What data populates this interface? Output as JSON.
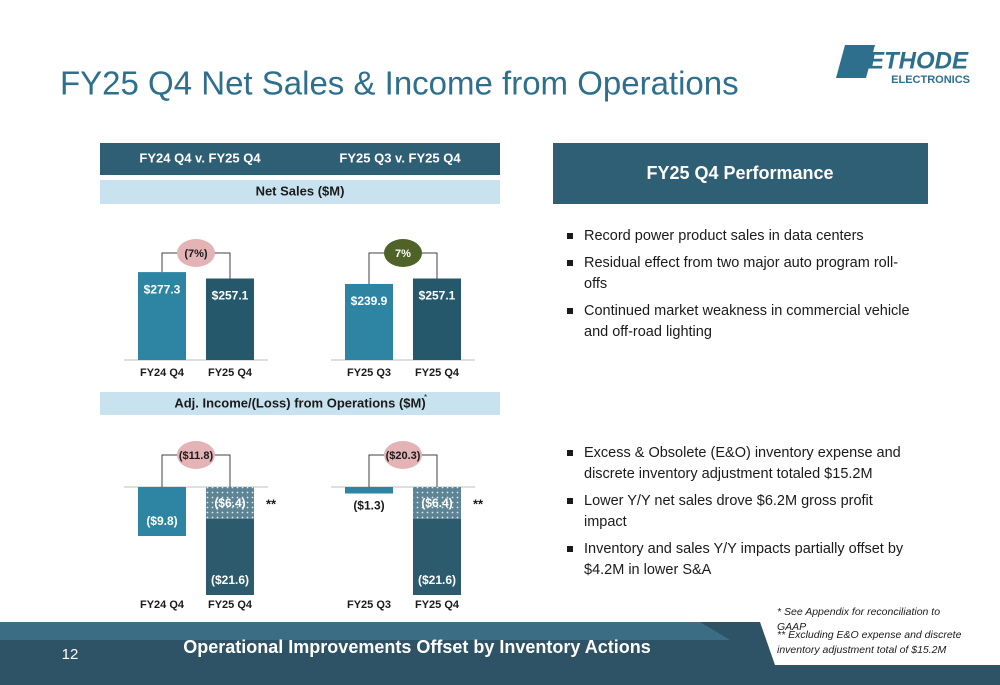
{
  "title": "FY25 Q4 Net Sales & Income from Operations",
  "logo": {
    "name": "METHODE",
    "sub": "ELECTRONICS"
  },
  "tabs": [
    "FY24 Q4 v. FY25 Q4",
    "FY25 Q3 v. FY25 Q4"
  ],
  "sections": [
    "Net Sales ($M)",
    "Adj. Income/(Loss) from Operations ($M)"
  ],
  "section_mark": "*",
  "chart_data": [
    {
      "type": "bar",
      "categories": [
        "FY24 Q4",
        "FY25 Q4"
      ],
      "values": [
        277.3,
        257.1
      ],
      "value_labels": [
        "$277.3",
        "$257.1"
      ],
      "colors": [
        "#2e84a3",
        "#26586c"
      ],
      "change": -7,
      "change_label": "(7%)"
    },
    {
      "type": "bar",
      "categories": [
        "FY25 Q3",
        "FY25 Q4"
      ],
      "values": [
        239.9,
        257.1
      ],
      "value_labels": [
        "$239.9",
        "$257.1"
      ],
      "colors": [
        "#2e84a3",
        "#26586c"
      ],
      "change": 7,
      "change_label": "7%"
    },
    {
      "type": "bar",
      "categories": [
        "FY24 Q4",
        "FY25 Q4"
      ],
      "values": [
        -9.8,
        -21.6
      ],
      "value_labels": [
        "($9.8)",
        "($21.6)"
      ],
      "colors": [
        "#2e84a3",
        "#2d5b6e"
      ],
      "adjusted_values": [
        null,
        -6.4
      ],
      "adjusted_labels": [
        null,
        "($6.4)"
      ],
      "adjusted_marker": "**",
      "change": -11.8,
      "change_label": "($11.8)"
    },
    {
      "type": "bar",
      "categories": [
        "FY25 Q3",
        "FY25 Q4"
      ],
      "values": [
        -1.3,
        -21.6
      ],
      "value_labels": [
        "($1.3)",
        "($21.6)"
      ],
      "colors": [
        "#2e84a3",
        "#2d5b6e"
      ],
      "adjusted_values": [
        null,
        -6.4
      ],
      "adjusted_labels": [
        null,
        "($6.4)"
      ],
      "adjusted_marker": "**",
      "change": -20.3,
      "change_label": "($20.3)"
    }
  ],
  "performance": {
    "title": "FY25 Q4 Performance",
    "sales_bullets": [
      "Record power product sales in data centers",
      "Residual effect from two major auto program roll-offs",
      "Continued market weakness in commercial vehicle and off-road lighting"
    ],
    "income_bullets": [
      "Excess & Obsolete (E&O) inventory expense and discrete inventory adjustment totaled $15.2M",
      "Lower Y/Y net sales drove $6.2M gross profit impact",
      "Inventory and sales Y/Y impacts partially offset by $4.2M in lower S&A"
    ]
  },
  "footnotes": [
    "* See Appendix for reconciliation to GAAP",
    "** Excluding E&O expense and discrete inventory adjustment total of $15.2M"
  ],
  "footer": {
    "page": "12",
    "text": "Operational Improvements Offset by Inventory Actions"
  }
}
